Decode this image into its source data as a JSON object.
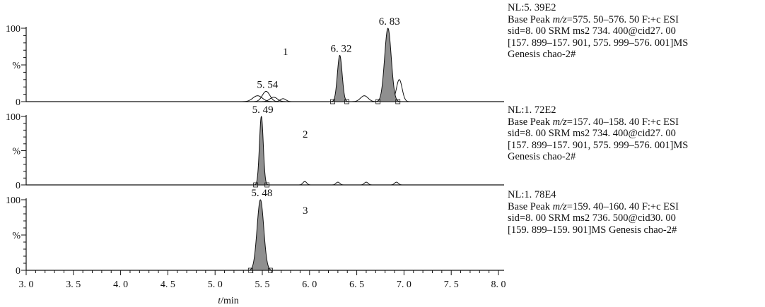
{
  "chart_data": [
    {
      "type": "line",
      "trace_number": "1",
      "x_range": [
        3.0,
        8.0
      ],
      "y_range": [
        0,
        100
      ],
      "y_ticks": [
        "100",
        "%",
        "0"
      ],
      "peaks": [
        {
          "label": "5.54",
          "x": 5.54,
          "height": 14,
          "width": 0.04,
          "filled": false
        },
        {
          "label": "6.32",
          "x": 6.32,
          "height": 63,
          "width": 0.025,
          "filled": true
        },
        {
          "label": "6.83",
          "x": 6.83,
          "height": 100,
          "width": 0.035,
          "filled": true
        }
      ],
      "minor_peaks": [
        {
          "x": 5.45,
          "height": 8,
          "width": 0.05
        },
        {
          "x": 5.62,
          "height": 6,
          "width": 0.04
        },
        {
          "x": 5.72,
          "height": 4,
          "width": 0.03
        },
        {
          "x": 6.58,
          "height": 8,
          "width": 0.04
        },
        {
          "x": 6.95,
          "height": 30,
          "width": 0.03
        }
      ],
      "info": {
        "nl": "NL:5. 39E2",
        "line2_prefix": "Base Peak ",
        "line2_italic": "m/z",
        "line2_rest": "=575. 50–576. 50  F:+c ESI",
        "line3": "sid=8. 00  SRM ms2  734. 400@cid27. 00",
        "line4": "[157. 899–157. 901, 575. 999–576. 001]MS",
        "line5": "Genesis chao-2#"
      }
    },
    {
      "type": "line",
      "trace_number": "2",
      "x_range": [
        3.0,
        8.0
      ],
      "y_range": [
        0,
        100
      ],
      "y_ticks": [
        "100",
        "%",
        "0"
      ],
      "peaks": [
        {
          "label": "5.49",
          "x": 5.49,
          "height": 100,
          "width": 0.02,
          "filled": true
        }
      ],
      "minor_peaks": [
        {
          "x": 5.95,
          "height": 5,
          "width": 0.02
        },
        {
          "x": 6.3,
          "height": 4,
          "width": 0.02
        },
        {
          "x": 6.6,
          "height": 4,
          "width": 0.02
        },
        {
          "x": 6.92,
          "height": 4,
          "width": 0.02
        }
      ],
      "info": {
        "nl": "NL:1. 72E2",
        "line2_prefix": "Base Peak ",
        "line2_italic": "m/z",
        "line2_rest": "=157. 40–158. 40  F:+c ESI",
        "line3": "sid=8. 00  SRM ms2  734. 400@cid27. 00",
        "line4": "[157. 899–157. 901, 575. 999–576. 001]MS",
        "line5": "Genesis chao-2#"
      }
    },
    {
      "type": "line",
      "trace_number": "3",
      "x_range": [
        3.0,
        8.0
      ],
      "y_range": [
        0,
        100
      ],
      "y_ticks": [
        "100",
        "%",
        "0"
      ],
      "peaks": [
        {
          "label": "5.48",
          "x": 5.48,
          "height": 100,
          "width": 0.035,
          "filled": true
        }
      ],
      "minor_peaks": [],
      "info": {
        "nl": "NL:1. 78E4",
        "line2_prefix": "Base Peak ",
        "line2_italic": "m/z",
        "line2_rest": "=159. 40–160. 40  F:+c ESI",
        "line3": "sid=8. 00  SRM ms2  736. 500@cid30. 00",
        "line4": "[159. 899–159. 901]MS Genesis chao-2#",
        "line5": ""
      }
    }
  ],
  "x_axis": {
    "ticks": [
      "3. 0",
      "3. 5",
      "4. 0",
      "4. 5",
      "5. 0",
      "5. 5",
      "6. 0",
      "6. 5",
      "7. 0",
      "7. 5",
      "8. 0"
    ],
    "label_italic": "t",
    "label_rest": "/min"
  }
}
